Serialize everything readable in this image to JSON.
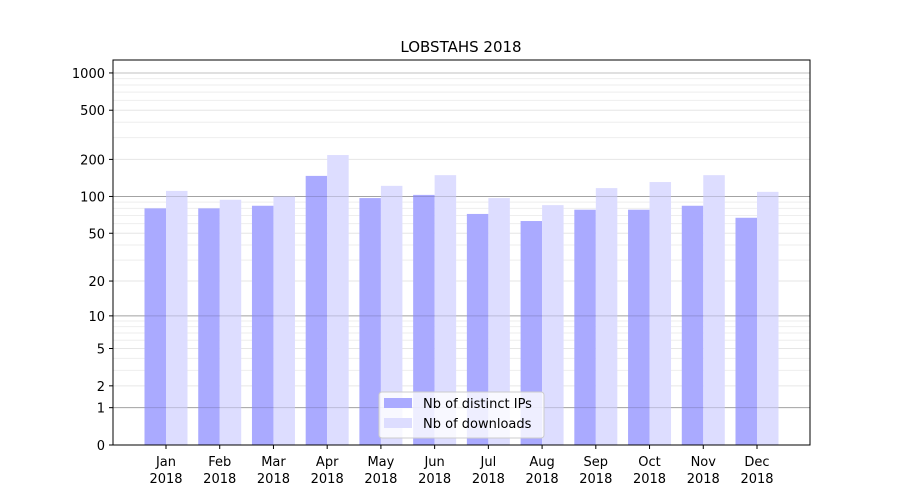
{
  "chart_data": {
    "type": "bar",
    "title": "LOBSTAHS 2018",
    "xlabel": "",
    "ylabel": "",
    "y_scale": "log(1+y)",
    "ylim": [
      0,
      1300
    ],
    "yticks": [
      0,
      1,
      2,
      5,
      10,
      20,
      50,
      100,
      200,
      500,
      1000
    ],
    "grid": true,
    "legend_position": "lower center",
    "categories": [
      "Jan\n2018",
      "Feb\n2018",
      "Mar\n2018",
      "Apr\n2018",
      "May\n2018",
      "Jun\n2018",
      "Jul\n2018",
      "Aug\n2018",
      "Sep\n2018",
      "Oct\n2018",
      "Nov\n2018",
      "Dec\n2018"
    ],
    "series": [
      {
        "name": "Nb of distinct IPs",
        "color": "#aaaaff",
        "values": [
          80,
          80,
          84,
          147,
          97,
          103,
          72,
          63,
          78,
          78,
          84,
          67
        ]
      },
      {
        "name": "Nb of downloads",
        "color": "#ddddff",
        "values": [
          111,
          94,
          100,
          217,
          122,
          149,
          97,
          85,
          117,
          131,
          149,
          109
        ]
      }
    ]
  }
}
